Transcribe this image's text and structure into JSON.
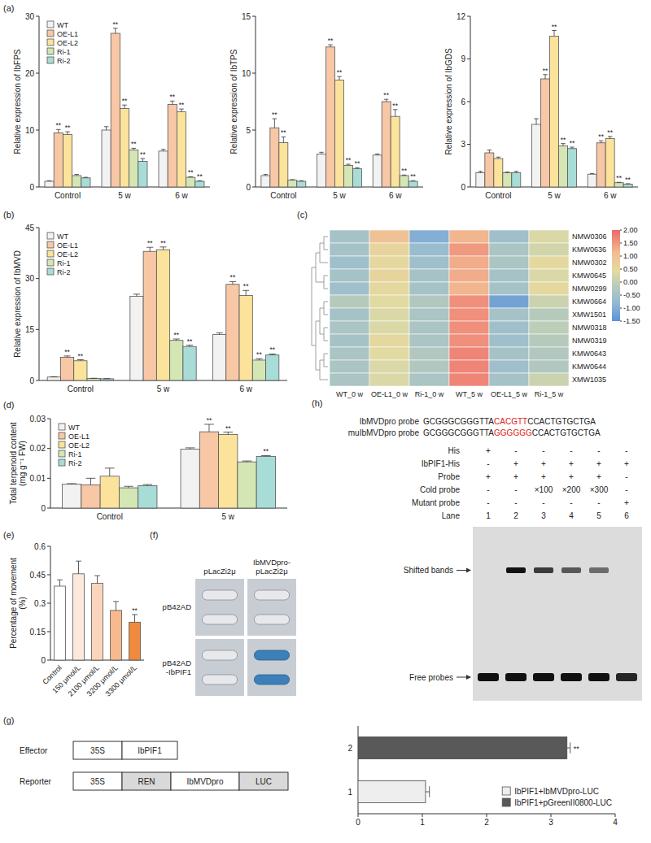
{
  "chart_data": [
    {
      "type": "bar",
      "panel": "(a)",
      "y_label": "Relative expression of IbFPS",
      "categories": [
        "Control",
        "5 w",
        "6 w"
      ],
      "ylim": [
        0,
        30
      ],
      "yticks": [
        0,
        10,
        20,
        30
      ],
      "legend": "upper left",
      "series": [
        {
          "name": "WT",
          "color": "#f2f2f2",
          "values": [
            1.0,
            10.0,
            6.3
          ],
          "errors": [
            0.1,
            0.6,
            0.3
          ]
        },
        {
          "name": "OE-L1",
          "color": "#f7c7a6",
          "values": [
            9.5,
            27.0,
            14.5
          ],
          "errors": [
            0.6,
            0.9,
            0.6
          ],
          "annotations": [
            "**",
            "**",
            "**"
          ]
        },
        {
          "name": "OE-L2",
          "color": "#fbe39b",
          "values": [
            9.2,
            13.8,
            13.2
          ],
          "errors": [
            0.5,
            0.6,
            0.5
          ],
          "annotations": [
            "**",
            "**",
            "**"
          ]
        },
        {
          "name": "Ri-1",
          "color": "#d3e6b4",
          "values": [
            2.0,
            6.5,
            1.7
          ],
          "errors": [
            0.2,
            0.3,
            0.1
          ],
          "annotations": [
            null,
            "**",
            "**"
          ]
        },
        {
          "name": "Ri-2",
          "color": "#a8dcd6",
          "values": [
            1.6,
            4.5,
            1.0
          ],
          "errors": [
            0.1,
            0.5,
            0.1
          ],
          "annotations": [
            null,
            "**",
            "**"
          ]
        }
      ]
    },
    {
      "type": "bar",
      "y_label": "Relative expression of IbTPS",
      "categories": [
        "Control",
        "5 w",
        "6 w"
      ],
      "ylim": [
        0,
        15
      ],
      "yticks": [
        0,
        5,
        10,
        15
      ],
      "series": [
        {
          "name": "WT",
          "color": "#f2f2f2",
          "values": [
            1.0,
            2.9,
            2.8
          ],
          "errors": [
            0.1,
            0.15,
            0.1
          ]
        },
        {
          "name": "OE-L1",
          "color": "#f7c7a6",
          "values": [
            5.2,
            12.3,
            7.5
          ],
          "errors": [
            0.8,
            0.2,
            0.2
          ],
          "annotations": [
            "**",
            "**",
            "**"
          ]
        },
        {
          "name": "OE-L2",
          "color": "#fbe39b",
          "values": [
            3.9,
            9.4,
            6.2
          ],
          "errors": [
            0.5,
            0.3,
            0.6
          ],
          "annotations": [
            "**",
            "**",
            "**"
          ]
        },
        {
          "name": "Ri-1",
          "color": "#d3e6b4",
          "values": [
            0.6,
            1.9,
            1.0
          ],
          "errors": [
            0.05,
            0.1,
            0.05
          ],
          "annotations": [
            null,
            "**",
            "**"
          ]
        },
        {
          "name": "Ri-2",
          "color": "#a8dcd6",
          "values": [
            0.5,
            1.6,
            0.5
          ],
          "errors": [
            0.05,
            0.1,
            0.05
          ],
          "annotations": [
            null,
            "**",
            "**"
          ]
        }
      ]
    },
    {
      "type": "bar",
      "y_label": "Relative expression of IbGDS",
      "categories": [
        "Control",
        "5 w",
        "6 w"
      ],
      "ylim": [
        0,
        12
      ],
      "yticks": [
        0,
        3,
        6,
        9,
        12
      ],
      "series": [
        {
          "name": "WT",
          "color": "#f2f2f2",
          "values": [
            1.0,
            4.4,
            0.9
          ],
          "errors": [
            0.1,
            0.4,
            0.05
          ]
        },
        {
          "name": "OE-L1",
          "color": "#f7c7a6",
          "values": [
            2.4,
            7.6,
            3.1
          ],
          "errors": [
            0.2,
            0.3,
            0.15
          ],
          "annotations": [
            null,
            "**",
            "**"
          ]
        },
        {
          "name": "OE-L2",
          "color": "#fbe39b",
          "values": [
            2.0,
            10.6,
            3.4
          ],
          "errors": [
            0.1,
            0.4,
            0.15
          ],
          "annotations": [
            null,
            "**",
            "**"
          ]
        },
        {
          "name": "Ri-1",
          "color": "#d3e6b4",
          "values": [
            1.0,
            2.9,
            0.3
          ],
          "errors": [
            0.05,
            0.15,
            0.03
          ],
          "annotations": [
            null,
            "**",
            "**"
          ]
        },
        {
          "name": "Ri-2",
          "color": "#a8dcd6",
          "values": [
            1.0,
            2.7,
            0.2
          ],
          "errors": [
            0.1,
            0.1,
            0.03
          ],
          "annotations": [
            null,
            "**",
            "**"
          ]
        }
      ]
    },
    {
      "type": "bar",
      "panel": "(b)",
      "y_label": "Relative expression of IbMVD",
      "categories": [
        "Control",
        "5 w",
        "6 w"
      ],
      "ylim": [
        0,
        45
      ],
      "yticks": [
        0,
        15,
        30,
        45
      ],
      "legend": "upper left",
      "series": [
        {
          "name": "WT",
          "color": "#f2f2f2",
          "values": [
            1.0,
            24.8,
            13.5
          ],
          "errors": [
            0.1,
            0.6,
            0.5
          ]
        },
        {
          "name": "OE-L1",
          "color": "#f7c7a6",
          "values": [
            6.8,
            38.0,
            28.3
          ],
          "errors": [
            0.4,
            1.2,
            0.8
          ],
          "annotations": [
            "**",
            "**",
            "**"
          ]
        },
        {
          "name": "OE-L2",
          "color": "#fbe39b",
          "values": [
            5.8,
            38.5,
            25.0
          ],
          "errors": [
            0.3,
            0.8,
            1.5
          ],
          "annotations": [
            "**",
            "**",
            "**"
          ]
        },
        {
          "name": "Ri-1",
          "color": "#d3e6b4",
          "values": [
            0.6,
            11.8,
            6.0
          ],
          "errors": [
            0.05,
            0.4,
            0.4
          ],
          "annotations": [
            null,
            "**",
            "**"
          ]
        },
        {
          "name": "Ri-2",
          "color": "#a8dcd6",
          "values": [
            0.5,
            10.0,
            7.5
          ],
          "errors": [
            0.05,
            0.4,
            0.3
          ],
          "annotations": [
            null,
            "**",
            "**"
          ]
        }
      ]
    },
    {
      "type": "heatmap",
      "panel": "(c)",
      "x": [
        "WT_0 w",
        "OE-L1_0 w",
        "Ri-1_0 w",
        "WT_5 w",
        "OE-L1_5 w",
        "Ri-1_5 w"
      ],
      "y": [
        "NMW0306",
        "KMW0636",
        "NMW0302",
        "KMW0645",
        "NMW0299",
        "KMW0664",
        "XMW1501",
        "NMW0318",
        "NMW0319",
        "KMW0643",
        "KMW0644",
        "XMW1035"
      ],
      "cells": [
        [
          -0.5,
          1.0,
          -1.0,
          1.2,
          -0.6,
          0.3
        ],
        [
          -0.5,
          0.6,
          -0.7,
          1.5,
          -0.4,
          0.2
        ],
        [
          -0.6,
          0.5,
          -0.6,
          1.3,
          -0.4,
          0.5
        ],
        [
          -0.5,
          0.6,
          -0.5,
          1.3,
          -0.5,
          0.3
        ],
        [
          -0.6,
          0.5,
          -0.5,
          1.2,
          -0.5,
          0.5
        ],
        [
          -0.2,
          0.4,
          -0.3,
          1.6,
          -1.2,
          0.1
        ],
        [
          -0.5,
          0.3,
          -0.4,
          1.6,
          -0.5,
          -0.2
        ],
        [
          -0.4,
          0.3,
          -0.4,
          1.6,
          -0.6,
          -0.1
        ],
        [
          -0.5,
          0.5,
          -0.4,
          1.6,
          -0.6,
          -0.2
        ],
        [
          -0.4,
          0.4,
          -0.3,
          1.7,
          -0.5,
          -0.3
        ],
        [
          -0.4,
          0.3,
          -0.3,
          1.7,
          -0.6,
          -0.3
        ],
        [
          -0.4,
          0.3,
          -0.4,
          1.7,
          -0.5,
          0.1
        ]
      ],
      "color_range": [
        -1.5,
        2.0
      ],
      "color_ticks": [
        {
          "value": 2,
          "label": "2.00"
        },
        {
          "value": 1.5,
          "label": "1.50"
        },
        {
          "value": 1,
          "label": "1.00"
        },
        {
          "value": 0.5,
          "label": "0.50"
        },
        {
          "value": 0,
          "label": "0.00"
        },
        {
          "value": -0.5,
          "label": "-0.50"
        },
        {
          "value": -1,
          "label": "-1.00"
        },
        {
          "value": -1.5,
          "label": "-1.50"
        }
      ]
    },
    {
      "type": "bar",
      "panel": "(d)",
      "y_label": "Total terpenoid content (mg g⁻¹ FW)",
      "categories": [
        "Control",
        "5 w"
      ],
      "ylim": [
        0,
        0.03
      ],
      "yticks": [
        0,
        0.01,
        0.02,
        0.03
      ],
      "legend": "upper left",
      "series": [
        {
          "name": "WT",
          "color": "#f2f2f2",
          "values": [
            0.008,
            0.0198
          ],
          "errors": [
            0.0002,
            0.0004
          ]
        },
        {
          "name": "OE-L1",
          "color": "#f7c7a6",
          "values": [
            0.0078,
            0.0256
          ],
          "errors": [
            0.0022,
            0.0025
          ],
          "annotations": [
            null,
            "**"
          ]
        },
        {
          "name": "OE-L2",
          "color": "#fbe39b",
          "values": [
            0.0107,
            0.0247
          ],
          "errors": [
            0.0027,
            0.0008
          ],
          "annotations": [
            null,
            "**"
          ]
        },
        {
          "name": "Ri-1",
          "color": "#d3e6b4",
          "values": [
            0.0068,
            0.0155
          ],
          "errors": [
            0.0005,
            0.0003
          ]
        },
        {
          "name": "Ri-2",
          "color": "#a8dcd6",
          "values": [
            0.0075,
            0.0173
          ],
          "errors": [
            0.0004,
            0.0003
          ],
          "annotations": [
            null,
            "**"
          ]
        }
      ]
    },
    {
      "type": "bar",
      "panel": "(e)",
      "y_label": "Percentage of movement (%)",
      "categories": [
        "Control",
        "150 μmol/L",
        "2100 μmol/L",
        "3200 μmol/L",
        "3300 μmol/L"
      ],
      "values": [
        0.39,
        0.455,
        0.405,
        0.262,
        0.2
      ],
      "errors": [
        0.033,
        0.067,
        0.04,
        0.047,
        0.04
      ],
      "annotations": [
        null,
        null,
        null,
        null,
        "**"
      ],
      "colors": [
        "#ffffff",
        "#fde9dc",
        "#fbd5bb",
        "#f7b98d",
        "#ef8a3e"
      ],
      "ylim": [
        0,
        0.6
      ],
      "yticks": [
        0,
        0.15,
        0.3,
        0.45,
        0.6
      ]
    },
    {
      "type": "bar",
      "orientation": "horizontal",
      "categories": [
        "1",
        "2"
      ],
      "xlim": [
        0,
        4
      ],
      "xticks": [
        0,
        1,
        2,
        3,
        4
      ],
      "legend": "lower right",
      "series": [
        {
          "name": "IbPIF1+IbMVDpro-LUC",
          "color": "#eeeeee",
          "values": [
            1.05,
            null
          ],
          "errors": [
            0.06,
            null
          ]
        },
        {
          "name": "IbPIF1+pGreenII0800-LUC",
          "color": "#595959",
          "values": [
            null,
            3.25
          ],
          "errors": [
            null,
            0.05
          ],
          "annotations": [
            null,
            "**"
          ]
        }
      ]
    }
  ],
  "yeast_assay": {
    "panel": "(f)",
    "columns": [
      "pLacZi2μ",
      "IbMVDpro-pLacZi2μ"
    ],
    "rows": [
      "pB42AD",
      "pB42AD-IbPIF1"
    ],
    "stain": [
      [
        false,
        false
      ],
      [
        false,
        true
      ]
    ]
  },
  "luc_constructs": {
    "panel": "(g)",
    "effector_label": "Effector",
    "effector": [
      "35S",
      "IbPIF1"
    ],
    "effector_shaded": [
      false,
      false
    ],
    "reporter_label": "Reporter",
    "reporter": [
      "35S",
      "REN",
      "IbMVDpro",
      "LUC"
    ],
    "reporter_shaded": [
      false,
      true,
      false,
      true
    ]
  },
  "emsa": {
    "panel": "(h)",
    "probes": [
      {
        "name": "IbMVDpro probe",
        "prefix": "GCGGGCGGGTTA",
        "motif": "CACGTT",
        "suffix": "CCACTGTGCTGA"
      },
      {
        "name": "muIbMVDpro probe",
        "prefix": "GCGGGCGGGTTA",
        "motif": "GGGGGG",
        "suffix": "CCACTGTGCTGA"
      }
    ],
    "rows": [
      {
        "label": "His",
        "cells": [
          "+",
          "-",
          "-",
          "-",
          "-",
          "-"
        ]
      },
      {
        "label": "IbPIF1-His",
        "cells": [
          "-",
          "+",
          "+",
          "+",
          "+",
          "+"
        ]
      },
      {
        "label": "Probe",
        "cells": [
          "+",
          "+",
          "+",
          "+",
          "+",
          "-"
        ]
      },
      {
        "label": "Cold probe",
        "cells": [
          "-",
          "-",
          "×100",
          "×200",
          "×300",
          "-"
        ]
      },
      {
        "label": "Mutant probe",
        "cells": [
          "-",
          "-",
          "-",
          "-",
          "-",
          "+"
        ]
      },
      {
        "label": "Lane",
        "cells": [
          "1",
          "2",
          "3",
          "4",
          "5",
          "6"
        ]
      }
    ],
    "shifted_label": "Shifted bands",
    "free_label": "Free probes",
    "shifted_band": [
      0,
      1,
      0.8,
      0.65,
      0.55,
      0
    ],
    "free_band": [
      1,
      1,
      1,
      1,
      1,
      0.9
    ]
  }
}
